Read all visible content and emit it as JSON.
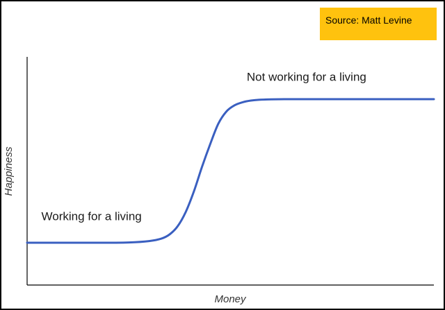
{
  "source_label": "Source: Matt Levine",
  "colors": {
    "source_bg": "#ffc20e",
    "curve": "#3a5fc0",
    "axis": "#000000"
  },
  "chart_data": {
    "type": "line",
    "xlabel": "Money",
    "ylabel": "Happiness",
    "grid": false,
    "xlim": [
      0,
      100
    ],
    "ylim": [
      0,
      100
    ],
    "series": [
      {
        "x": [
          0,
          10,
          20,
          25,
          30,
          33,
          35,
          37,
          39,
          41,
          43,
          45,
          47,
          49,
          51,
          53,
          55,
          57,
          60,
          65,
          70,
          80,
          90,
          100
        ],
        "values": [
          20,
          20,
          20,
          20.1,
          20.8,
          22,
          24,
          28,
          35,
          45,
          57,
          68,
          78,
          84,
          87,
          88.5,
          89.3,
          89.7,
          89.9,
          90,
          90,
          90,
          90,
          90
        ]
      }
    ],
    "annotations": [
      {
        "text": "Working for a living",
        "x": 3.5,
        "y": 31
      },
      {
        "text": "Not working for a living",
        "x": 54,
        "y": 99
      }
    ]
  }
}
